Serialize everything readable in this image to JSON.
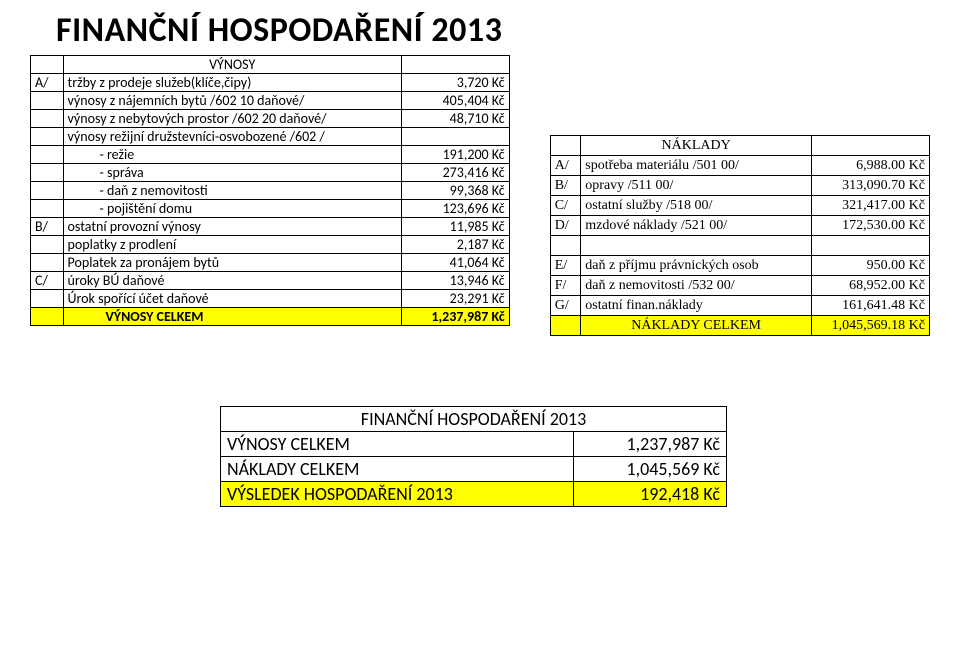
{
  "title": "FINANČNÍ HOSPODAŘENÍ 2013",
  "vynosy": {
    "header": "VÝNOSY",
    "rows": [
      {
        "a": "A/",
        "b": "tržby z prodeje služeb(klíče,čipy)",
        "c": "3,720 Kč",
        "indent": 0
      },
      {
        "a": "",
        "b": "výnosy z nájemních bytů /602 10 daňové/",
        "c": "405,404 Kč",
        "indent": 0
      },
      {
        "a": "",
        "b": "výnosy z nebytových prostor /602 20 daňové/",
        "c": "48,710 Kč",
        "indent": 0
      },
      {
        "a": "",
        "b": "výnosy režijní družstevníci-osvobozené /602 /",
        "c": "",
        "indent": 0
      },
      {
        "a": "",
        "b": "- režie",
        "c": "191,200 Kč",
        "indent": 1
      },
      {
        "a": "",
        "b": "- správa",
        "c": "273,416 Kč",
        "indent": 1
      },
      {
        "a": "",
        "b": "- daň z nemovitosti",
        "c": "99,368 Kč",
        "indent": 1
      },
      {
        "a": "",
        "b": "- pojištění domu",
        "c": "123,696 Kč",
        "indent": 1
      },
      {
        "a": "B/",
        "b": "ostatní provozní výnosy",
        "c": "11,985 Kč",
        "indent": 0
      },
      {
        "a": "",
        "b": "poplatky z prodlení",
        "c": "2,187 Kč",
        "indent": 0
      },
      {
        "a": "",
        "b": "Poplatek za pronájem bytů",
        "c": "41,064 Kč",
        "indent": 0
      },
      {
        "a": "C/",
        "b": "úroky BÚ daňové",
        "c": "13,946 Kč",
        "indent": 0
      },
      {
        "a": "",
        "b": "Úrok spořící účet daňové",
        "c": "23,291 Kč",
        "indent": 0
      }
    ],
    "total_label": "VÝNOSY CELKEM",
    "total_value": "1,237,987 Kč"
  },
  "naklady": {
    "header": "NÁKLADY",
    "rows": [
      {
        "a": "A/",
        "b": "spotřeba materiálu /501 00/",
        "c": "6,988.00 Kč"
      },
      {
        "a": "B/",
        "b": "opravy /511 00/",
        "c": "313,090.70 Kč"
      },
      {
        "a": "C/",
        "b": "ostatní služby /518 00/",
        "c": "321,417.00 Kč"
      },
      {
        "a": "D/",
        "b": "mzdové náklady /521 00/",
        "c": "172,530.00 Kč"
      },
      {
        "a": "",
        "b": "",
        "c": ""
      },
      {
        "a": "E/",
        "b": "daň z příjmu právnických osob",
        "c": "950.00 Kč"
      },
      {
        "a": "F/",
        "b": "daň z nemovitosti /532 00/",
        "c": "68,952.00 Kč"
      },
      {
        "a": "G/",
        "b": "ostatní finan.náklady",
        "c": "161,641.48 Kč"
      }
    ],
    "total_label": "NÁKLADY CELKEM",
    "total_value": "1,045,569.18 Kč"
  },
  "summary": {
    "header": "FINANČNÍ HOSPODAŘENÍ 2013",
    "rows": [
      {
        "l": "VÝNOSY CELKEM",
        "r": "1,237,987 Kč"
      },
      {
        "l": "NÁKLADY CELKEM",
        "r": "1,045,569 Kč"
      }
    ],
    "result_label": "VÝSLEDEK HOSPODAŘENÍ 2013",
    "result_value": "192,418 Kč"
  }
}
